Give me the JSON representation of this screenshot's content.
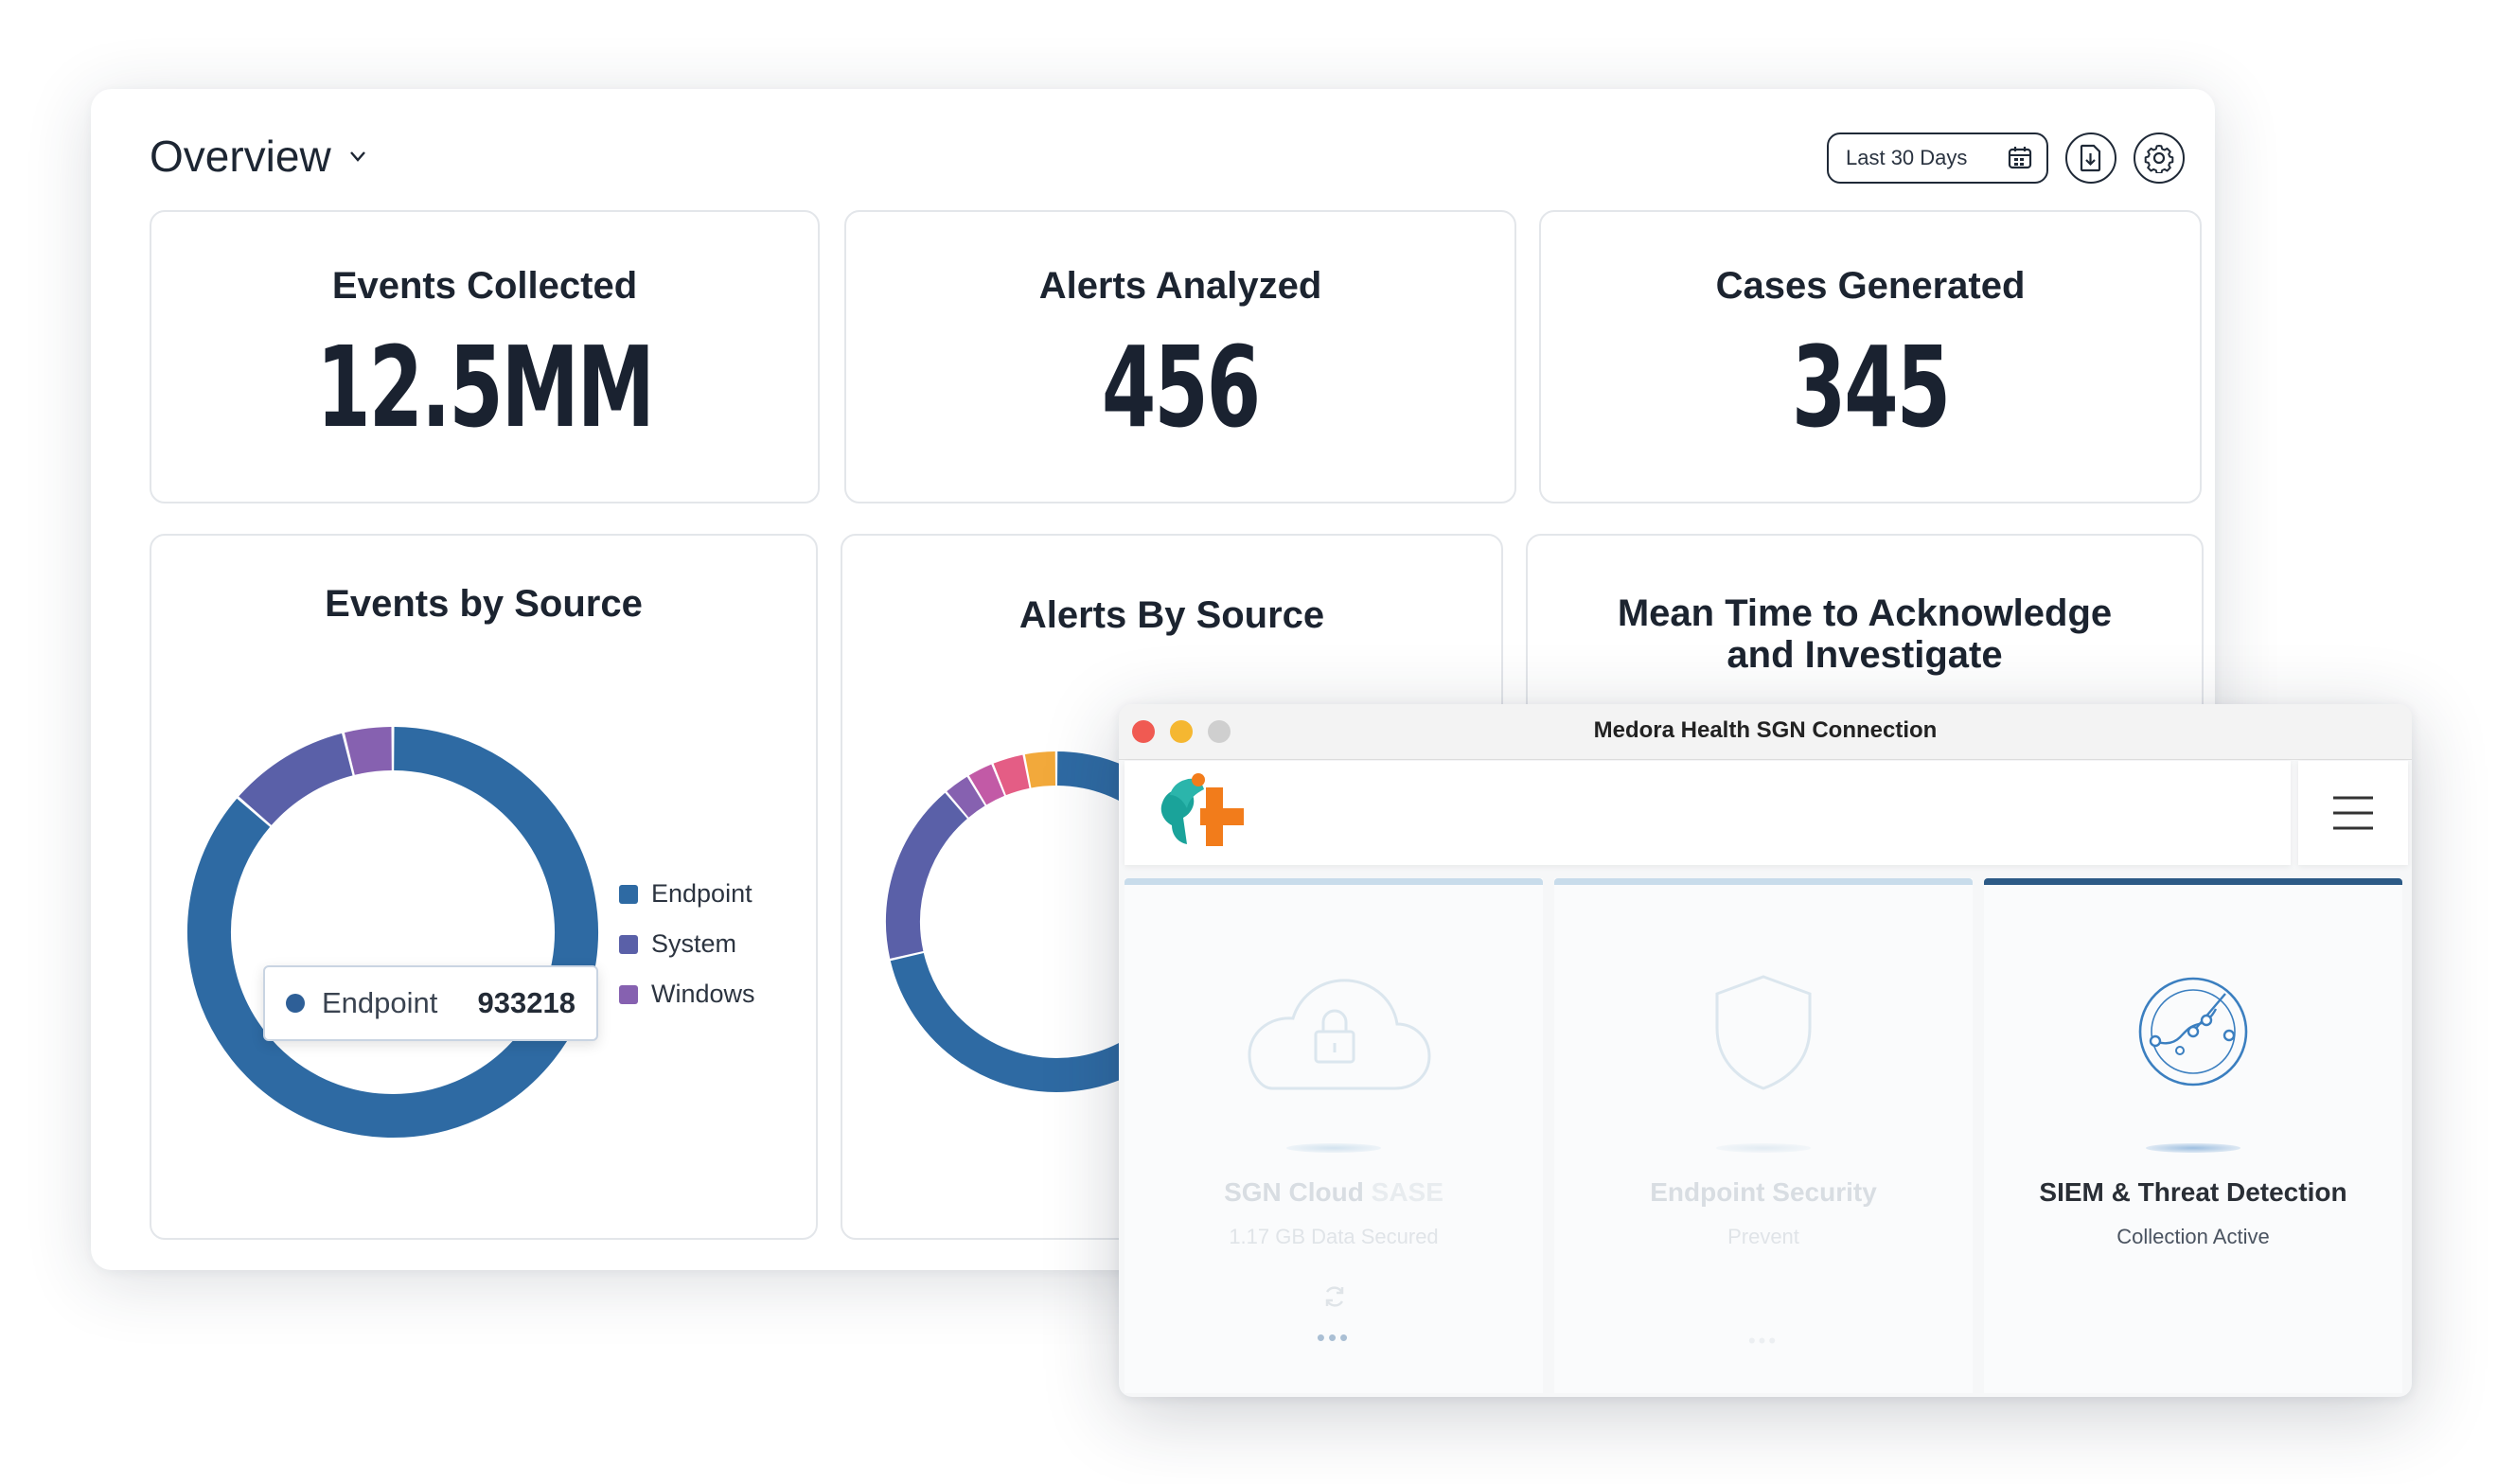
{
  "dashboard": {
    "title": "Overview",
    "date_range": "Last 30 Days",
    "kpis": [
      {
        "title": "Events Collected",
        "value": "12.5MM"
      },
      {
        "title": "Alerts Analyzed",
        "value": "456"
      },
      {
        "title": "Cases Generated",
        "value": "345"
      }
    ],
    "charts": {
      "events_by_source": {
        "title": "Events by Source",
        "legend": [
          "Endpoint",
          "System",
          "Windows"
        ],
        "tooltip": {
          "label": "Endpoint",
          "value": "933218"
        }
      },
      "alerts_by_source": {
        "title": "Alerts By Source"
      },
      "mtta": {
        "title_line1": "Mean Time to Acknowledge",
        "title_line2": "and Investigate"
      }
    }
  },
  "chart_data": [
    {
      "type": "pie",
      "title": "Events by Source",
      "categories": [
        "Endpoint",
        "System",
        "Windows"
      ],
      "values": [
        933218,
        105000,
        42000
      ],
      "colors": [
        "#2e6aa3",
        "#5a60a8",
        "#8661b0"
      ],
      "legend": "right",
      "donut": true
    },
    {
      "type": "pie",
      "title": "Alerts By Source",
      "categories": [
        "",
        "",
        "",
        "",
        "",
        ""
      ],
      "values": [
        70,
        17,
        2.5,
        2.5,
        3,
        3
      ],
      "colors": [
        "#2e6aa3",
        "#5a60a8",
        "#8661b0",
        "#c25aa6",
        "#e45d85",
        "#f2a93b"
      ],
      "donut": true
    }
  ],
  "app_window": {
    "title": "Medora Health SGN Connection",
    "traffic_lights": [
      "#f05a52",
      "#f5b731",
      "#cfcfcf"
    ],
    "accent": "#2c5a86",
    "tiles": [
      {
        "name_primary": "SGN Cloud",
        "name_secondary": "SASE",
        "subtitle": "1.17 GB Data Secured",
        "icon": "cloud-lock-icon",
        "dots": "•••"
      },
      {
        "name": "Endpoint Security",
        "subtitle": "Prevent",
        "icon": "shield-icon",
        "dots": "•••"
      },
      {
        "name": "SIEM & Threat Detection",
        "subtitle": "Collection Active",
        "icon": "radar-icon"
      }
    ]
  }
}
